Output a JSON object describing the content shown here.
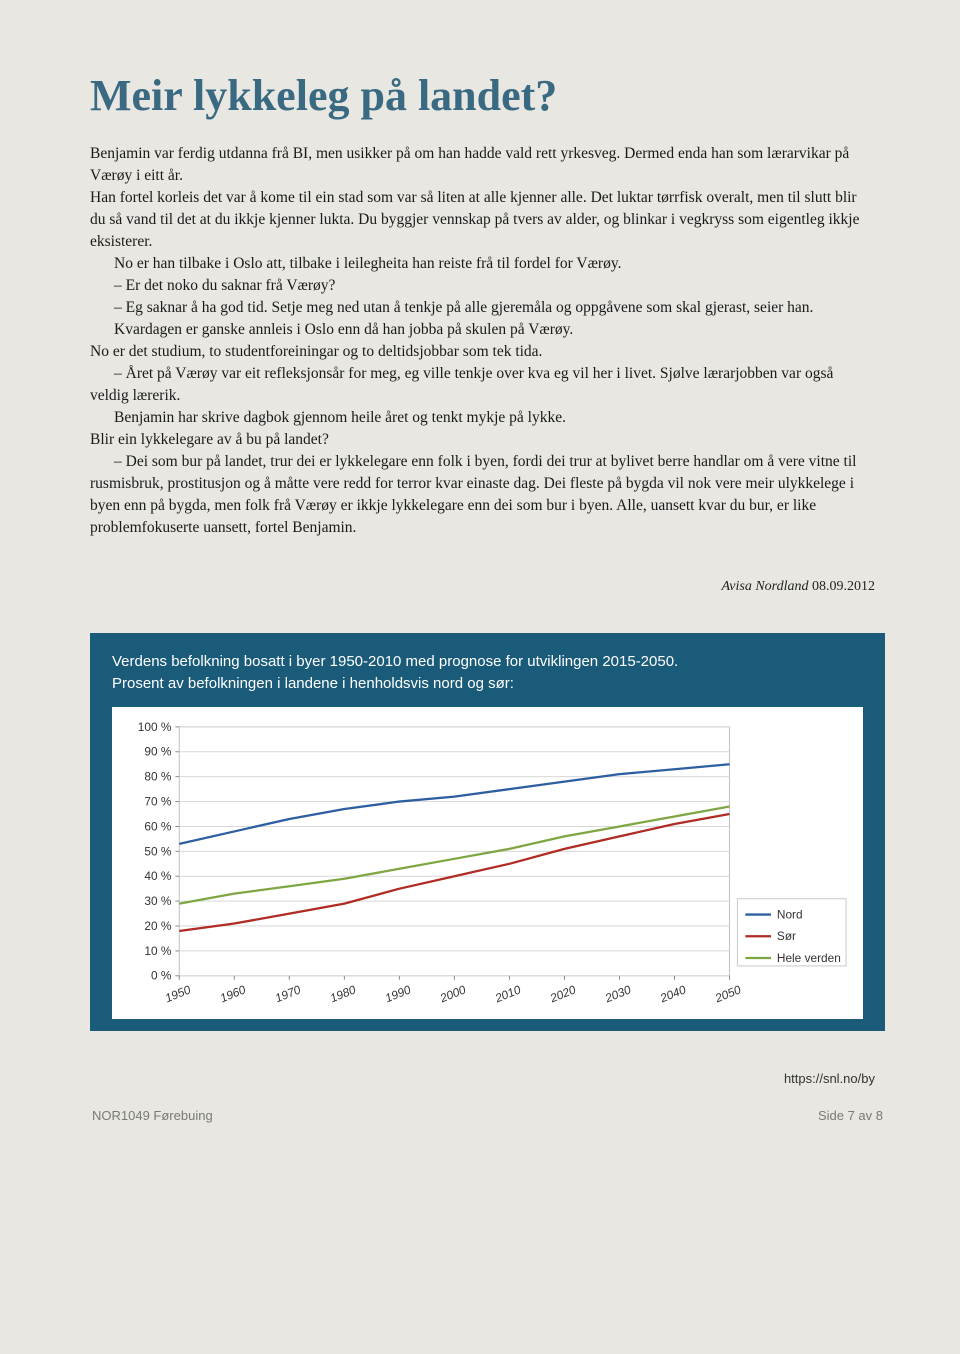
{
  "title": "Meir lykkeleg på landet?",
  "paragraphs": [
    {
      "indent": false,
      "text": "Benjamin var ferdig utdanna frå BI, men usikker på om han hadde vald rett yrkesveg. Dermed enda han som lærarvikar på Værøy i eitt år."
    },
    {
      "indent": false,
      "text": "Han fortel korleis det var å kome til ein stad som var så liten at alle kjenner alle. Det luktar tørrfisk overalt, men til slutt blir du så vand til det at du ikkje kjenner lukta. Du byggjer vennskap på tvers av alder, og blinkar i vegkryss som eigentleg ikkje eksisterer."
    },
    {
      "indent": true,
      "text": "No er han tilbake i Oslo att, tilbake i leilegheita han reiste frå til fordel for Værøy."
    },
    {
      "indent": true,
      "text": "– Er det noko du saknar frå Værøy?"
    },
    {
      "indent": true,
      "text": "– Eg saknar å ha god tid. Setje meg ned utan å tenkje på alle gjeremåla og oppgåvene som skal gjerast, seier han."
    },
    {
      "indent": true,
      "text": "Kvardagen er ganske annleis i Oslo enn då han jobba på skulen på Værøy."
    },
    {
      "indent": false,
      "text": "No er det studium, to studentforeiningar og to deltidsjobbar som tek tida."
    },
    {
      "indent": true,
      "text": "– Året på Værøy var eit refleksjonsår for meg, eg ville tenkje over kva eg vil her i livet. Sjølve lærarjobben var også veldig lærerik."
    },
    {
      "indent": true,
      "text": "Benjamin har skrive dagbok gjennom heile året og tenkt mykje på lykke."
    },
    {
      "indent": false,
      "text": "Blir ein lykkelegare av å bu på landet?"
    },
    {
      "indent": true,
      "text": "– Dei som bur på landet, trur dei er lykkelegare enn folk i byen, fordi dei trur at bylivet berre handlar om å vere vitne til rusmisbruk, prostitusjon og å måtte vere redd for terror kvar einaste dag. Dei fleste på bygda vil nok vere meir ulykkelege i byen enn på bygda, men folk frå Værøy er ikkje lykkelegare enn dei som bur i byen. Alle, uansett kvar du bur, er like problemfokuserte uansett, fortel Benjamin."
    }
  ],
  "source": {
    "name": "Avisa Nordland",
    "date": "08.09.2012"
  },
  "chart": {
    "type": "line",
    "caption_line1": "Verdens befolkning bosatt i byer 1950-2010 med prognose for utviklingen 2015-2050.",
    "caption_line2": "Prosent av befolkningen i landene i henholdsvis nord og sør:",
    "background_color": "#1a5b7a",
    "inner_background": "#ffffff",
    "y_axis": {
      "min": 0,
      "max": 100,
      "step": 10,
      "labels": [
        "0 %",
        "10 %",
        "20 %",
        "30 %",
        "40 %",
        "50 %",
        "60 %",
        "70 %",
        "80 %",
        "90 %",
        "100 %"
      ]
    },
    "x_axis": {
      "labels": [
        "1950",
        "1960",
        "1970",
        "1980",
        "1990",
        "2000",
        "2010",
        "2020",
        "2030",
        "2040",
        "2050"
      ]
    },
    "grid_color": "#d7d7d7",
    "series": [
      {
        "name": "Nord",
        "color": "#2d5fa0",
        "width": 2.3,
        "values": [
          53,
          58,
          63,
          67,
          70,
          72,
          75,
          78,
          81,
          83,
          85
        ]
      },
      {
        "name": "Sør",
        "color": "#b02b23",
        "width": 2.3,
        "values": [
          18,
          21,
          25,
          29,
          35,
          40,
          45,
          51,
          56,
          61,
          65
        ]
      },
      {
        "name": "Hele verden",
        "color": "#7ea642",
        "width": 2.3,
        "values": [
          29,
          33,
          36,
          39,
          43,
          47,
          51,
          56,
          60,
          64,
          68
        ]
      }
    ],
    "legend": {
      "position": "right",
      "border_color": "#c9c9c7"
    }
  },
  "url": "https://snl.no/by",
  "footer": {
    "left": "NOR1049 Førebuing",
    "right": "Side 7 av 8"
  }
}
